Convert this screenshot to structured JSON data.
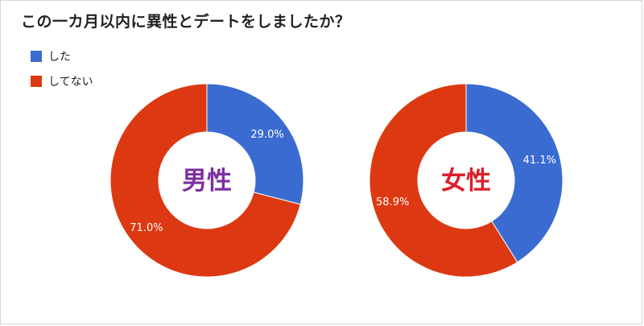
{
  "title": "この一カ月以内に異性とデートをしましたか？",
  "colors": {
    "did": "#3a6bd0",
    "did_not": "#dc3912",
    "male_label": "#7b2fa0",
    "female_label": "#dc1f2a"
  },
  "legend": [
    {
      "label": "した",
      "color_key": "did"
    },
    {
      "label": "してない",
      "color_key": "did_not"
    }
  ],
  "chart_data": [
    {
      "type": "pie",
      "center_label": "男性",
      "categories": [
        "した",
        "してない"
      ],
      "values": [
        29.0,
        71.0
      ],
      "data_labels": [
        "29.0%",
        "71.0%"
      ]
    },
    {
      "type": "pie",
      "center_label": "女性",
      "categories": [
        "した",
        "してない"
      ],
      "values": [
        41.1,
        58.9
      ],
      "data_labels": [
        "41.1%",
        "58.9%"
      ]
    }
  ]
}
